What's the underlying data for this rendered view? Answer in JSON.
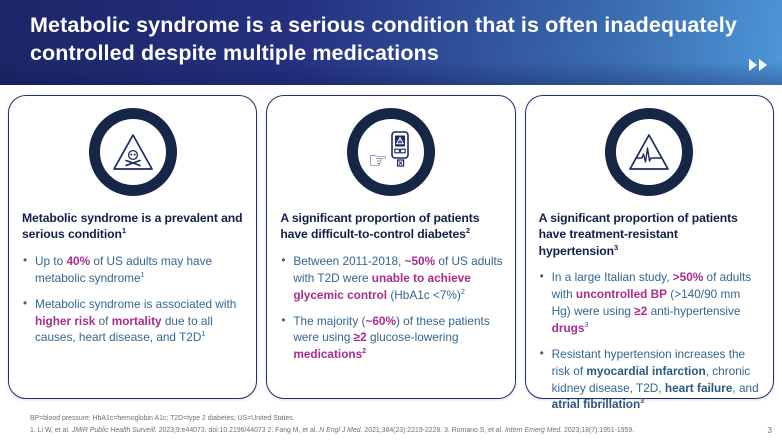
{
  "slide": {
    "title_lines": [
      "Metabolic syndrome is a serious condition that is often inadequately",
      "controlled despite multiple medications"
    ],
    "page_number": "3"
  },
  "header": {
    "nav_icon": "fast-forward-icon"
  },
  "colors": {
    "header_gradient_left": "#1c2566",
    "header_gradient_right": "#4e97d8",
    "ring_navy": "#152647",
    "card_border_navy": "#223163",
    "heading_navy": "#131f4a",
    "body_blue": "#34668e",
    "accent_magenta": "#a92c8e",
    "bold_term_navy": "#2a5881"
  },
  "cards": [
    {
      "icon": "hazard-skull-crossbones-icon",
      "heading": [
        {
          "t": "Metabolic syndrome is a prevalent and serious condition"
        },
        {
          "t": "1",
          "sup": true
        }
      ],
      "bullets": [
        [
          {
            "t": "Up to "
          },
          {
            "t": "40%",
            "s": "accent"
          },
          {
            "t": " of US adults may have metabolic syndrome"
          },
          {
            "t": "1",
            "sup": true
          }
        ],
        [
          {
            "t": "Metabolic syndrome is associated with "
          },
          {
            "t": "higher risk",
            "s": "accent"
          },
          {
            "t": " of "
          },
          {
            "t": "mortality",
            "s": "accent"
          },
          {
            "t": " due to all causes, heart disease, and T2D"
          },
          {
            "t": "1",
            "sup": true
          }
        ]
      ]
    },
    {
      "icon": "glucose-meter-warning-icon",
      "heading": [
        {
          "t": "A significant proportion of patients have difficult-to-control diabetes"
        },
        {
          "t": "2",
          "sup": true
        }
      ],
      "bullets": [
        [
          {
            "t": "Between 2011-2018, "
          },
          {
            "t": "~50%",
            "s": "accent"
          },
          {
            "t": " of US adults with T2D were "
          },
          {
            "t": "unable to achieve glycemic control",
            "s": "accent"
          },
          {
            "t": " (HbA1c <7%)"
          },
          {
            "t": "2",
            "sup": true
          }
        ],
        [
          {
            "t": "The majority ("
          },
          {
            "t": "~60%",
            "s": "accent"
          },
          {
            "t": ") of these patients were using "
          },
          {
            "t": "≥2",
            "s": "accent"
          },
          {
            "t": " glucose-lowering "
          },
          {
            "t": "medications",
            "s": "accent"
          },
          {
            "t": "2",
            "sup": true,
            "s": "accent"
          }
        ]
      ]
    },
    {
      "icon": "ecg-warning-triangle-icon",
      "heading": [
        {
          "t": "A significant proportion of patients have treatment-resistant hypertension"
        },
        {
          "t": "3",
          "sup": true
        }
      ],
      "bullets": [
        [
          {
            "t": "In a large Italian study, "
          },
          {
            "t": ">50%",
            "s": "accent"
          },
          {
            "t": " of adults with "
          },
          {
            "t": "uncontrolled BP",
            "s": "accent"
          },
          {
            "t": " (>140/90 mm Hg) were using "
          },
          {
            "t": "≥2",
            "s": "accent"
          },
          {
            "t": " anti-hypertensive "
          },
          {
            "t": "drugs",
            "s": "accent"
          },
          {
            "t": "3",
            "sup": true
          }
        ],
        [
          {
            "t": "Resistant hypertension increases the risk of "
          },
          {
            "t": "myocardial infarction",
            "s": "bold"
          },
          {
            "t": ", chronic kidney disease, T2D, "
          },
          {
            "t": "heart failure",
            "s": "bold"
          },
          {
            "t": ", and "
          },
          {
            "t": "atrial fibrillation",
            "s": "bold"
          },
          {
            "t": "3",
            "sup": true,
            "s": "bold"
          }
        ]
      ]
    }
  ],
  "footer": {
    "abbreviations": "BP=blood pressure; HbA1c=hemoglobin A1c; T2D=type 2 diabetes; US=United States.",
    "references": [
      {
        "t": "1. Li W, et al. "
      },
      {
        "t": "JMIR Public Health Surveill.",
        "s": "italic"
      },
      {
        "t": " 2023;9:e44073. doi:10.2196/44073  2. Fang M, et al. "
      },
      {
        "t": "N Engl J Med.",
        "s": "italic"
      },
      {
        "t": " 2021;384(23):2219-2228. 3. Romano S, et al. "
      },
      {
        "t": "Intern Emerg Med.",
        "s": "italic"
      },
      {
        "t": " 2023;18(7):1951-1959."
      }
    ]
  }
}
